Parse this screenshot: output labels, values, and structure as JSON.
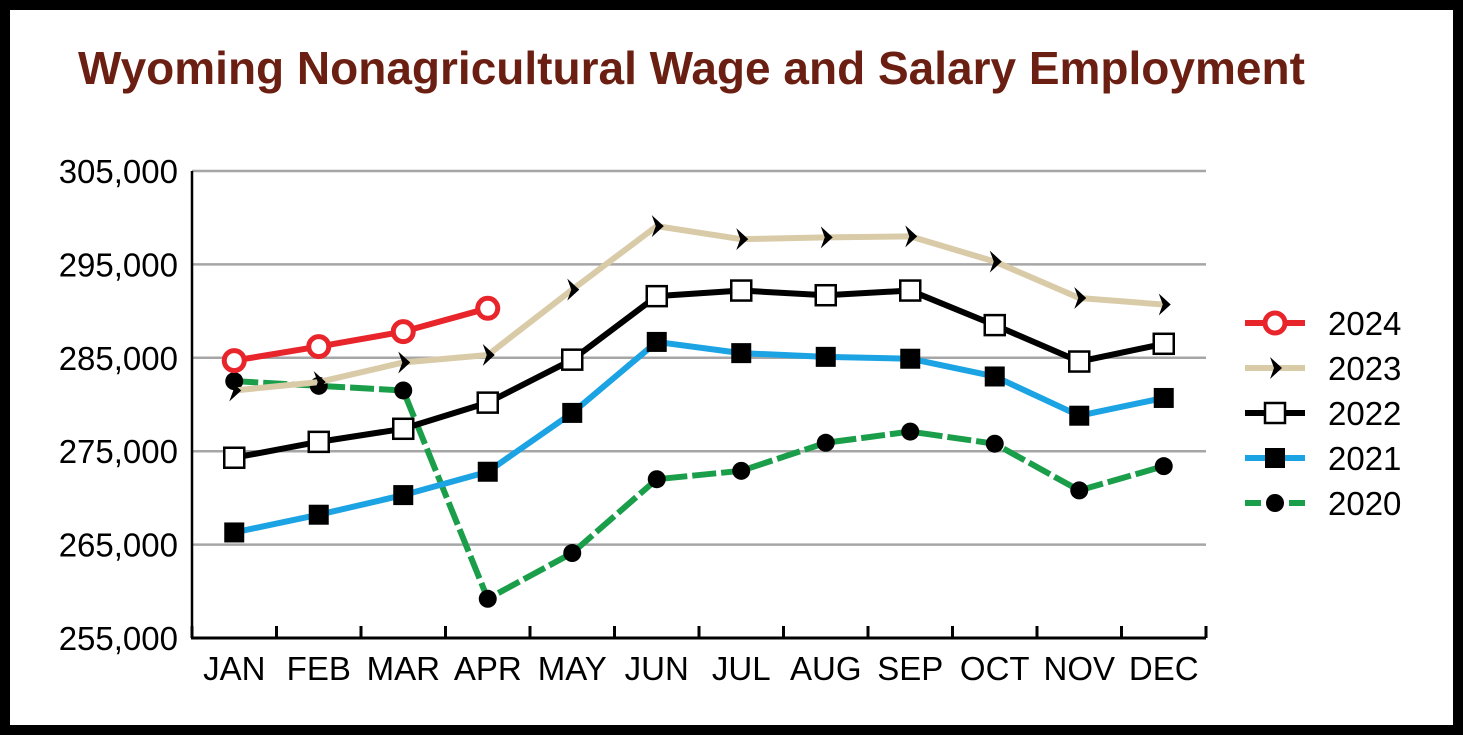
{
  "chart_data": {
    "type": "line",
    "title": "Wyoming Nonagricultural Wage and Salary Employment",
    "xlabel": "",
    "ylabel": "",
    "categories": [
      "JAN",
      "FEB",
      "MAR",
      "APR",
      "MAY",
      "JUN",
      "JUL",
      "AUG",
      "SEP",
      "OCT",
      "NOV",
      "DEC"
    ],
    "ylim": [
      255000,
      305000
    ],
    "yticks": [
      305000,
      295000,
      285000,
      275000,
      265000,
      255000
    ],
    "ytick_labels": [
      "305,000",
      "295,000",
      "285,000",
      "275,000",
      "265,000",
      "255,000"
    ],
    "grid": true,
    "legend_position": "right",
    "series": [
      {
        "name": "2024",
        "color": "#e8252a",
        "marker": "open-circle",
        "dash": "solid",
        "values": [
          284700,
          286200,
          287800,
          290300,
          null,
          null,
          null,
          null,
          null,
          null,
          null,
          null
        ]
      },
      {
        "name": "2023",
        "color": "#d9cba8",
        "marker": "chevron",
        "dash": "solid",
        "values": [
          281500,
          282400,
          284500,
          285300,
          292300,
          299100,
          297700,
          297900,
          298000,
          295300,
          291400,
          290700
        ]
      },
      {
        "name": "2022",
        "color": "#000000",
        "marker": "open-square",
        "dash": "solid",
        "values": [
          274300,
          276000,
          277400,
          280200,
          284800,
          291600,
          292200,
          291700,
          292200,
          288500,
          284600,
          286500
        ]
      },
      {
        "name": "2021",
        "color": "#1ba3e3",
        "marker": "filled-square",
        "dash": "solid",
        "values": [
          266300,
          268200,
          270300,
          272800,
          279100,
          286700,
          285500,
          285100,
          284900,
          283000,
          278800,
          280700
        ]
      },
      {
        "name": "2020",
        "color": "#1a9e4a",
        "marker": "filled-circle",
        "dash": "dashed",
        "values": [
          282500,
          282000,
          281500,
          259200,
          264100,
          272000,
          272900,
          275900,
          277100,
          275800,
          270800,
          273400
        ]
      }
    ]
  }
}
